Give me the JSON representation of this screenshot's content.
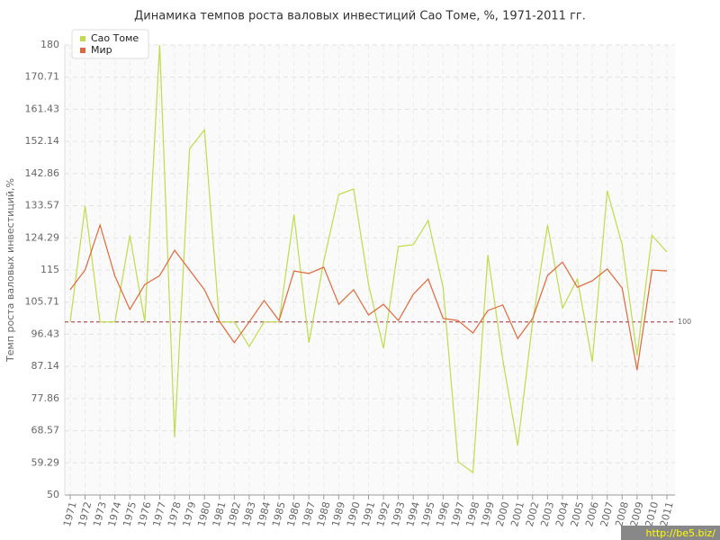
{
  "chart_data": {
    "type": "line",
    "title": "Динамика темпов роста валовых инвестиций Сао Томе, %, 1971-2011 гг.",
    "y_label": "Темп роста валовых инвестиций,%",
    "categories": [
      "1971",
      "1972",
      "1973",
      "1974",
      "1975",
      "1976",
      "1977",
      "1978",
      "1979",
      "1980",
      "1981",
      "1982",
      "1983",
      "1984",
      "1985",
      "1986",
      "1987",
      "1988",
      "1989",
      "1990",
      "1991",
      "1992",
      "1993",
      "1994",
      "1995",
      "1996",
      "1997",
      "1998",
      "1999",
      "2000",
      "2001",
      "2002",
      "2003",
      "2004",
      "2005",
      "2006",
      "2007",
      "2008",
      "2009",
      "2010",
      "2011"
    ],
    "series": [
      {
        "name": "Сао Томе",
        "color": "#bedc4b",
        "values": [
          100,
          133.5,
          100,
          100,
          125,
          100,
          180,
          66.6,
          150,
          155.5,
          100,
          100,
          92.9,
          100,
          100,
          131,
          94,
          117.6,
          136.8,
          138.4,
          110.8,
          92.4,
          121.8,
          122.3,
          129.3,
          109.8,
          59.6,
          56.5,
          119.4,
          89,
          64.3,
          100,
          128,
          104,
          112.4,
          88.5,
          137.9,
          122.3,
          90.3,
          125,
          120.2
        ]
      },
      {
        "name": "Мир",
        "color": "#e0693a",
        "values": [
          109.3,
          115,
          128,
          113.2,
          103.6,
          110.8,
          113.4,
          120.7,
          115,
          109.3,
          100.2,
          94,
          100,
          106.2,
          100.4,
          114.7,
          114,
          115.8,
          105.1,
          109.3,
          102,
          105.1,
          100.4,
          108,
          112.4,
          101,
          100.4,
          96.8,
          103.3,
          104.9,
          95.2,
          101,
          113.4,
          117.3,
          110,
          111.9,
          115.3,
          109.8,
          86.1,
          115,
          114.7
        ]
      }
    ],
    "reference_line": {
      "value": 100,
      "color": "#a0303a"
    },
    "ylim": [
      50,
      180
    ],
    "yticks": [
      50,
      59.29,
      68.57,
      77.86,
      87.14,
      96.43,
      105.71,
      115,
      124.29,
      133.57,
      142.86,
      152.14,
      161.43,
      170.71,
      180
    ],
    "grid": true,
    "legend": "top-left",
    "watermark": "http://be5.biz/"
  }
}
